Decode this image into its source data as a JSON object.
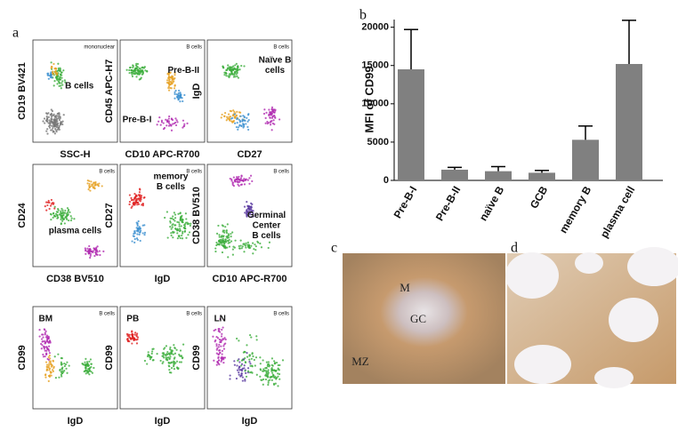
{
  "panel_labels": [
    "a",
    "b",
    "c",
    "d"
  ],
  "flow_plots": [
    {
      "y_label": "CD19 BV421",
      "x_label": "SSC-H",
      "gate_label": "mononuclear",
      "annotations": [
        "B cells"
      ]
    },
    {
      "y_label": "CD45 APC-H7",
      "x_label": "CD10 APC-R700",
      "gate_label": "B cells",
      "annotations": [
        "Pre-B-II",
        "Pre-B-I"
      ]
    },
    {
      "y_label": "IgD",
      "x_label": "CD27",
      "gate_label": "B cells",
      "annotations": [
        "Naïve B",
        "cells"
      ]
    },
    {
      "y_label": "CD24",
      "x_label": "CD38 BV510",
      "gate_label": "B cells",
      "annotations": [
        "plasma cells"
      ]
    },
    {
      "y_label": "CD27",
      "x_label": "IgD",
      "gate_label": "B cells",
      "annotations": [
        "memory",
        "B cells"
      ]
    },
    {
      "y_label": "CD38 BV510",
      "x_label": "CD10 APC-R700",
      "gate_label": "B cells",
      "annotations": [
        "Germinal",
        "Center",
        "B cells"
      ]
    },
    {
      "y_label": "CD99",
      "x_label": "IgD",
      "gate_label": "B cells",
      "annotations": [
        "BM"
      ]
    },
    {
      "y_label": "CD99",
      "x_label": "IgD",
      "gate_label": "B cells",
      "annotations": [
        "PB"
      ]
    },
    {
      "y_label": "CD99",
      "x_label": "IgD",
      "gate_label": "B cells",
      "annotations": [
        "LN"
      ]
    }
  ],
  "histology_labels": [
    "M",
    "GC",
    "MZ"
  ],
  "chart_data": {
    "type": "bar",
    "y_label": "MFI of CD99",
    "categories": [
      "Pre-B-I",
      "Pre-B-II",
      "naïve B",
      "GCB",
      "memory B",
      "plasma cell"
    ],
    "values": [
      14500,
      1400,
      1200,
      1000,
      5300,
      15200
    ],
    "errors": [
      5200,
      300,
      600,
      300,
      1800,
      5700
    ],
    "color": "#808080",
    "ylim": [
      0,
      21000
    ],
    "yticks": [
      0,
      5000,
      10000,
      15000,
      20000
    ]
  }
}
